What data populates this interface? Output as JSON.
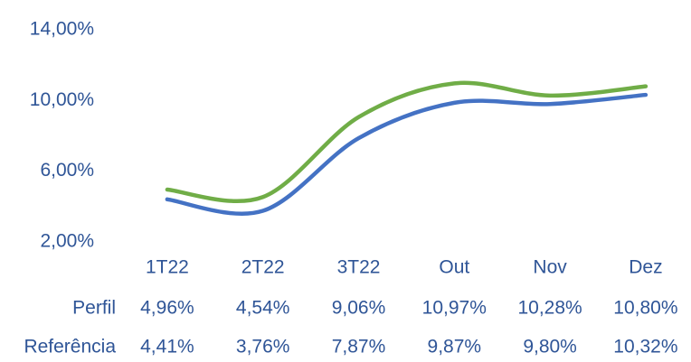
{
  "chart_data": {
    "type": "line",
    "categories": [
      "1T22",
      "2T22",
      "3T22",
      "Out",
      "Nov",
      "Dez"
    ],
    "series": [
      {
        "name": "Perfil",
        "color": "#70ad47",
        "values": [
          4.96,
          4.54,
          9.06,
          10.97,
          10.28,
          10.8
        ],
        "value_labels": [
          "4,96%",
          "4,54%",
          "9,06%",
          "10,97%",
          "10,28%",
          "10,80%"
        ]
      },
      {
        "name": "Referência",
        "color": "#4472c4",
        "values": [
          4.41,
          3.76,
          7.87,
          9.87,
          9.8,
          10.32
        ],
        "value_labels": [
          "4,41%",
          "3,76%",
          "7,87%",
          "9,87%",
          "9,80%",
          "10,32%"
        ]
      }
    ],
    "ylim": [
      2,
      14
    ],
    "yticks": [
      {
        "value": 2,
        "label": "2,00%"
      },
      {
        "value": 6,
        "label": "6,00%"
      },
      {
        "value": 10,
        "label": "10,00%"
      },
      {
        "value": 14,
        "label": "14,00%"
      }
    ],
    "grid": false
  }
}
